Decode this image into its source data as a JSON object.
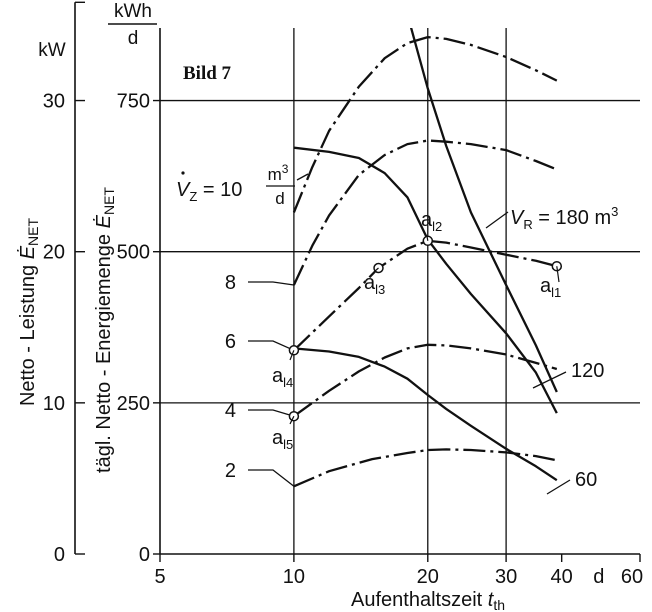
{
  "chart_data": {
    "type": "line",
    "title": "Bild 7",
    "xlabel": "Aufenthaltszeit t_th",
    "xlabel_main": "Aufenthaltszeit ",
    "xlabel_sym": "t",
    "xlabel_sub": "th",
    "xscale": "log",
    "xlim": [
      5,
      60
    ],
    "xticks": [
      5,
      10,
      20,
      30,
      40,
      60
    ],
    "xtick_labels": [
      "5",
      "10",
      "20",
      "30",
      "40",
      "60"
    ],
    "x_unit_label": "d",
    "ylim": [
      0,
      870
    ],
    "yticks": [
      0,
      250,
      500,
      750
    ],
    "ytick_labels": [
      "0",
      "250",
      "500",
      "750"
    ],
    "yunit_num": "kWh",
    "yunit_den": "d",
    "ylabel_text": "tägl. Netto - Energiemenge ",
    "ylabel_sym": "Ė",
    "ylabel_sub": "NET",
    "y2_unit": "kW",
    "y2ticks": [
      0,
      10,
      20,
      30
    ],
    "y2tick_labels": [
      "0",
      "10",
      "20",
      "30"
    ],
    "y2label_text": "Netto - Leistung ",
    "y2label_sym": "Ė",
    "y2label_sub": "NET",
    "grid": true,
    "series_flow": [
      {
        "label": "10",
        "x": [
          10,
          11,
          12,
          14,
          16,
          18,
          20,
          22,
          25,
          30,
          35,
          39
        ],
        "y": [
          565,
          640,
          700,
          773,
          820,
          845,
          855,
          852,
          842,
          822,
          800,
          783
        ]
      },
      {
        "label": "8",
        "x": [
          10,
          11,
          12,
          14,
          16,
          18,
          20,
          22,
          25,
          30,
          35,
          39
        ],
        "y": [
          445,
          510,
          560,
          627,
          660,
          678,
          684,
          682,
          678,
          668,
          650,
          636
        ]
      },
      {
        "label": "6",
        "x": [
          10,
          12,
          14,
          15.5,
          18,
          20,
          22,
          25,
          30,
          35,
          39
        ],
        "y": [
          337,
          393,
          440,
          473,
          505,
          518,
          515,
          507,
          495,
          485,
          476
        ]
      },
      {
        "label": "4",
        "x": [
          10,
          12,
          14,
          16,
          18,
          20,
          22,
          25,
          30,
          35,
          39
        ],
        "y": [
          228,
          270,
          302,
          325,
          340,
          346,
          345,
          340,
          330,
          316,
          306
        ]
      },
      {
        "label": "2",
        "x": [
          10,
          12,
          15,
          18,
          20,
          22,
          25,
          30,
          35,
          39
        ],
        "y": [
          112,
          137,
          157,
          167,
          172,
          173,
          172,
          168,
          162,
          155
        ]
      }
    ],
    "series_volume": [
      {
        "label": "180",
        "x": [
          17.5,
          20,
          22,
          25,
          30,
          35,
          39
        ],
        "y": [
          925,
          770,
          675,
          565,
          445,
          345,
          268
        ]
      },
      {
        "label": "120",
        "x": [
          10,
          12,
          14,
          16,
          18,
          20,
          22,
          25,
          30,
          35,
          39
        ],
        "y": [
          672,
          665,
          655,
          630,
          590,
          520,
          480,
          430,
          365,
          300,
          233
        ]
      },
      {
        "label": "60",
        "x": [
          10,
          12,
          14,
          16,
          18,
          20,
          22,
          25,
          30,
          35,
          39
        ],
        "y": [
          340,
          335,
          326,
          310,
          290,
          263,
          240,
          212,
          174,
          145,
          122
        ]
      }
    ],
    "points": [
      {
        "label": "a",
        "sub": "l1",
        "x": 39,
        "y": 476
      },
      {
        "label": "a",
        "sub": "l2",
        "x": 20,
        "y": 518
      },
      {
        "label": "a",
        "sub": "l3",
        "x": 15.5,
        "y": 473
      },
      {
        "label": "a",
        "sub": "l4",
        "x": 10,
        "y": 337
      },
      {
        "label": "a",
        "sub": "l5",
        "x": 10,
        "y": 228
      }
    ],
    "vz_prefix": "V",
    "vz_sub": "Z",
    "vz_eq": "= 10",
    "vz_unit_num": "m",
    "vz_unit_exp": "3",
    "vz_unit_den": "d",
    "vr_prefix": "V",
    "vr_sub": "R",
    "vr_eq": "= 180 m",
    "vr_exp": "3"
  }
}
